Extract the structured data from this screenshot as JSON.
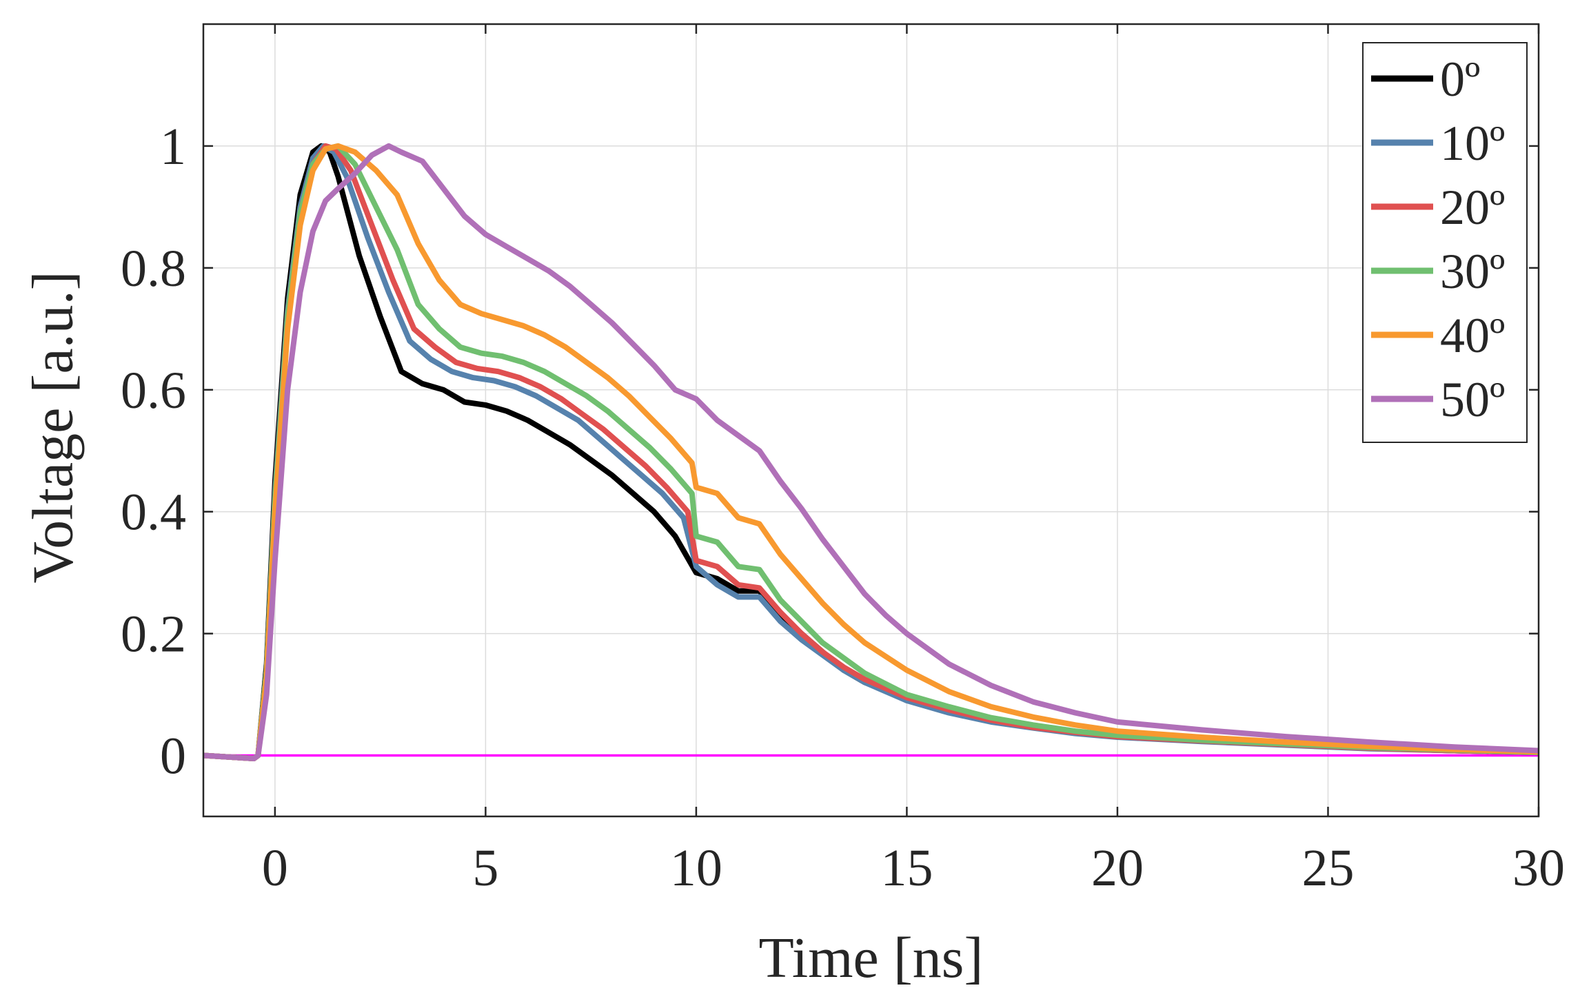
{
  "chart_data": {
    "type": "line",
    "title": "",
    "xlabel": "Time [ns]",
    "ylabel": "Voltage [a.u.]",
    "xlim": [
      -1.7,
      30
    ],
    "ylim": [
      -0.1,
      1.2
    ],
    "xticks": [
      0,
      5,
      10,
      15,
      20,
      25,
      30
    ],
    "xtick_labels": [
      "0",
      "5",
      "10",
      "15",
      "20",
      "25",
      "30"
    ],
    "yticks": [
      0,
      0.2,
      0.4,
      0.6,
      0.8,
      1
    ],
    "ytick_labels": [
      "0",
      "0.2",
      "0.4",
      "0.6",
      "0.8",
      "1"
    ],
    "grid": true,
    "legend_position": "top-right",
    "baseline": {
      "y": 0,
      "color": "#ff00ff"
    },
    "series": [
      {
        "name": "0º",
        "color": "#000000",
        "x": [
          -1.7,
          -0.5,
          -0.4,
          -0.2,
          0,
          0.3,
          0.6,
          0.9,
          1.1,
          1.3,
          1.5,
          2.0,
          2.5,
          3.0,
          3.5,
          4.0,
          4.5,
          5.0,
          5.5,
          6.0,
          6.5,
          7.0,
          7.5,
          8.0,
          8.5,
          9.0,
          9.5,
          10.0,
          10.5,
          11.0,
          11.5,
          12.0,
          12.5,
          13.0,
          13.5,
          14.0,
          15.0,
          16.0,
          17.0,
          18.0,
          19.0,
          20.0,
          22.0,
          24.0,
          26.0,
          28.0,
          30.0
        ],
        "y": [
          0,
          -0.005,
          0,
          0.15,
          0.45,
          0.75,
          0.92,
          0.99,
          1.0,
          0.99,
          0.95,
          0.82,
          0.72,
          0.63,
          0.61,
          0.6,
          0.58,
          0.575,
          0.565,
          0.55,
          0.53,
          0.51,
          0.485,
          0.46,
          0.43,
          0.4,
          0.36,
          0.3,
          0.29,
          0.27,
          0.27,
          0.23,
          0.2,
          0.17,
          0.14,
          0.12,
          0.095,
          0.075,
          0.058,
          0.048,
          0.038,
          0.032,
          0.025,
          0.018,
          0.012,
          0.008,
          0.005
        ]
      },
      {
        "name": "10º",
        "color": "#5682ad",
        "x": [
          -1.7,
          -0.5,
          -0.4,
          -0.2,
          0,
          0.3,
          0.6,
          0.9,
          1.15,
          1.4,
          1.7,
          2.2,
          2.7,
          3.2,
          3.7,
          4.2,
          4.7,
          5.2,
          5.7,
          6.2,
          6.7,
          7.2,
          7.7,
          8.2,
          8.7,
          9.2,
          9.7,
          10.0,
          10.5,
          11.0,
          11.5,
          12.0,
          12.5,
          13.0,
          13.5,
          14.0,
          15.0,
          16.0,
          17.0,
          18.0,
          19.0,
          20.0,
          22.0,
          24.0,
          26.0,
          28.0,
          30.0
        ],
        "y": [
          0,
          -0.005,
          0,
          0.14,
          0.43,
          0.73,
          0.9,
          0.98,
          1.0,
          0.99,
          0.95,
          0.85,
          0.76,
          0.68,
          0.65,
          0.63,
          0.62,
          0.615,
          0.605,
          0.59,
          0.57,
          0.55,
          0.52,
          0.49,
          0.46,
          0.43,
          0.39,
          0.31,
          0.28,
          0.26,
          0.26,
          0.22,
          0.19,
          0.165,
          0.14,
          0.12,
          0.09,
          0.07,
          0.055,
          0.045,
          0.036,
          0.03,
          0.023,
          0.017,
          0.011,
          0.008,
          0.005
        ]
      },
      {
        "name": "20º",
        "color": "#e05050",
        "x": [
          -1.7,
          -0.5,
          -0.4,
          -0.2,
          0,
          0.3,
          0.6,
          0.9,
          1.2,
          1.45,
          1.8,
          2.3,
          2.8,
          3.3,
          3.8,
          4.3,
          4.8,
          5.3,
          5.8,
          6.3,
          6.8,
          7.3,
          7.8,
          8.3,
          8.8,
          9.3,
          9.8,
          10.0,
          10.5,
          11.0,
          11.5,
          12.0,
          12.5,
          13.0,
          13.5,
          14.0,
          15.0,
          16.0,
          17.0,
          18.0,
          19.0,
          20.0,
          22.0,
          24.0,
          26.0,
          28.0,
          30.0
        ],
        "y": [
          0,
          -0.005,
          0,
          0.14,
          0.42,
          0.72,
          0.89,
          0.97,
          1.0,
          0.995,
          0.96,
          0.87,
          0.78,
          0.7,
          0.67,
          0.645,
          0.635,
          0.63,
          0.62,
          0.605,
          0.585,
          0.56,
          0.535,
          0.505,
          0.475,
          0.44,
          0.4,
          0.32,
          0.31,
          0.28,
          0.275,
          0.235,
          0.2,
          0.17,
          0.145,
          0.125,
          0.095,
          0.075,
          0.058,
          0.046,
          0.038,
          0.031,
          0.024,
          0.018,
          0.012,
          0.008,
          0.005
        ]
      },
      {
        "name": "30º",
        "color": "#70bf70",
        "x": [
          -1.7,
          -0.5,
          -0.4,
          -0.2,
          0,
          0.3,
          0.6,
          0.9,
          1.2,
          1.5,
          1.9,
          2.4,
          2.9,
          3.4,
          3.9,
          4.4,
          4.9,
          5.4,
          5.9,
          6.4,
          6.9,
          7.4,
          7.9,
          8.4,
          8.9,
          9.4,
          9.9,
          10.0,
          10.5,
          11.0,
          11.5,
          12.0,
          12.5,
          13.0,
          13.5,
          14.0,
          15.0,
          16.0,
          17.0,
          18.0,
          19.0,
          20.0,
          22.0,
          24.0,
          26.0,
          28.0,
          30.0
        ],
        "y": [
          0,
          -0.005,
          0,
          0.14,
          0.42,
          0.72,
          0.89,
          0.97,
          0.995,
          1.0,
          0.97,
          0.9,
          0.83,
          0.74,
          0.7,
          0.67,
          0.66,
          0.655,
          0.645,
          0.63,
          0.61,
          0.59,
          0.565,
          0.535,
          0.505,
          0.47,
          0.43,
          0.36,
          0.35,
          0.31,
          0.305,
          0.255,
          0.22,
          0.185,
          0.16,
          0.135,
          0.1,
          0.08,
          0.062,
          0.05,
          0.04,
          0.033,
          0.025,
          0.019,
          0.013,
          0.009,
          0.005
        ]
      },
      {
        "name": "40º",
        "color": "#f8992f",
        "x": [
          -1.7,
          -0.5,
          -0.4,
          -0.2,
          0,
          0.3,
          0.6,
          0.9,
          1.2,
          1.5,
          1.9,
          2.4,
          2.9,
          3.4,
          3.9,
          4.4,
          4.9,
          5.4,
          5.9,
          6.4,
          6.9,
          7.4,
          7.9,
          8.4,
          8.9,
          9.4,
          9.9,
          10.0,
          10.5,
          11.0,
          11.5,
          12.0,
          12.5,
          13.0,
          13.5,
          14.0,
          15.0,
          16.0,
          17.0,
          18.0,
          19.0,
          20.0,
          22.0,
          24.0,
          26.0,
          28.0,
          30.0
        ],
        "y": [
          0,
          -0.005,
          0,
          0.13,
          0.4,
          0.7,
          0.87,
          0.96,
          0.995,
          1.0,
          0.99,
          0.96,
          0.92,
          0.84,
          0.78,
          0.74,
          0.725,
          0.715,
          0.705,
          0.69,
          0.67,
          0.645,
          0.62,
          0.59,
          0.555,
          0.52,
          0.48,
          0.44,
          0.43,
          0.39,
          0.38,
          0.33,
          0.29,
          0.25,
          0.215,
          0.185,
          0.14,
          0.105,
          0.08,
          0.063,
          0.05,
          0.04,
          0.03,
          0.022,
          0.015,
          0.01,
          0.006
        ]
      },
      {
        "name": "50º",
        "color": "#b070b8",
        "x": [
          -1.7,
          -0.5,
          -0.4,
          -0.2,
          0,
          0.3,
          0.6,
          0.9,
          1.2,
          1.5,
          1.9,
          2.3,
          2.7,
          3.0,
          3.5,
          4.0,
          4.5,
          5.0,
          5.5,
          6.0,
          6.5,
          7.0,
          7.5,
          8.0,
          8.5,
          9.0,
          9.5,
          10.0,
          10.5,
          11.0,
          11.5,
          12.0,
          12.5,
          13.0,
          13.5,
          14.0,
          14.5,
          15.0,
          16.0,
          17.0,
          18.0,
          19.0,
          20.0,
          22.0,
          24.0,
          26.0,
          28.0,
          30.0
        ],
        "y": [
          0,
          -0.005,
          0,
          0.1,
          0.32,
          0.6,
          0.76,
          0.86,
          0.91,
          0.93,
          0.955,
          0.985,
          1.0,
          0.99,
          0.975,
          0.93,
          0.885,
          0.855,
          0.835,
          0.815,
          0.795,
          0.77,
          0.74,
          0.71,
          0.675,
          0.64,
          0.6,
          0.585,
          0.55,
          0.525,
          0.5,
          0.45,
          0.405,
          0.355,
          0.31,
          0.265,
          0.23,
          0.2,
          0.15,
          0.115,
          0.088,
          0.07,
          0.055,
          0.042,
          0.031,
          0.022,
          0.014,
          0.008
        ]
      }
    ]
  }
}
